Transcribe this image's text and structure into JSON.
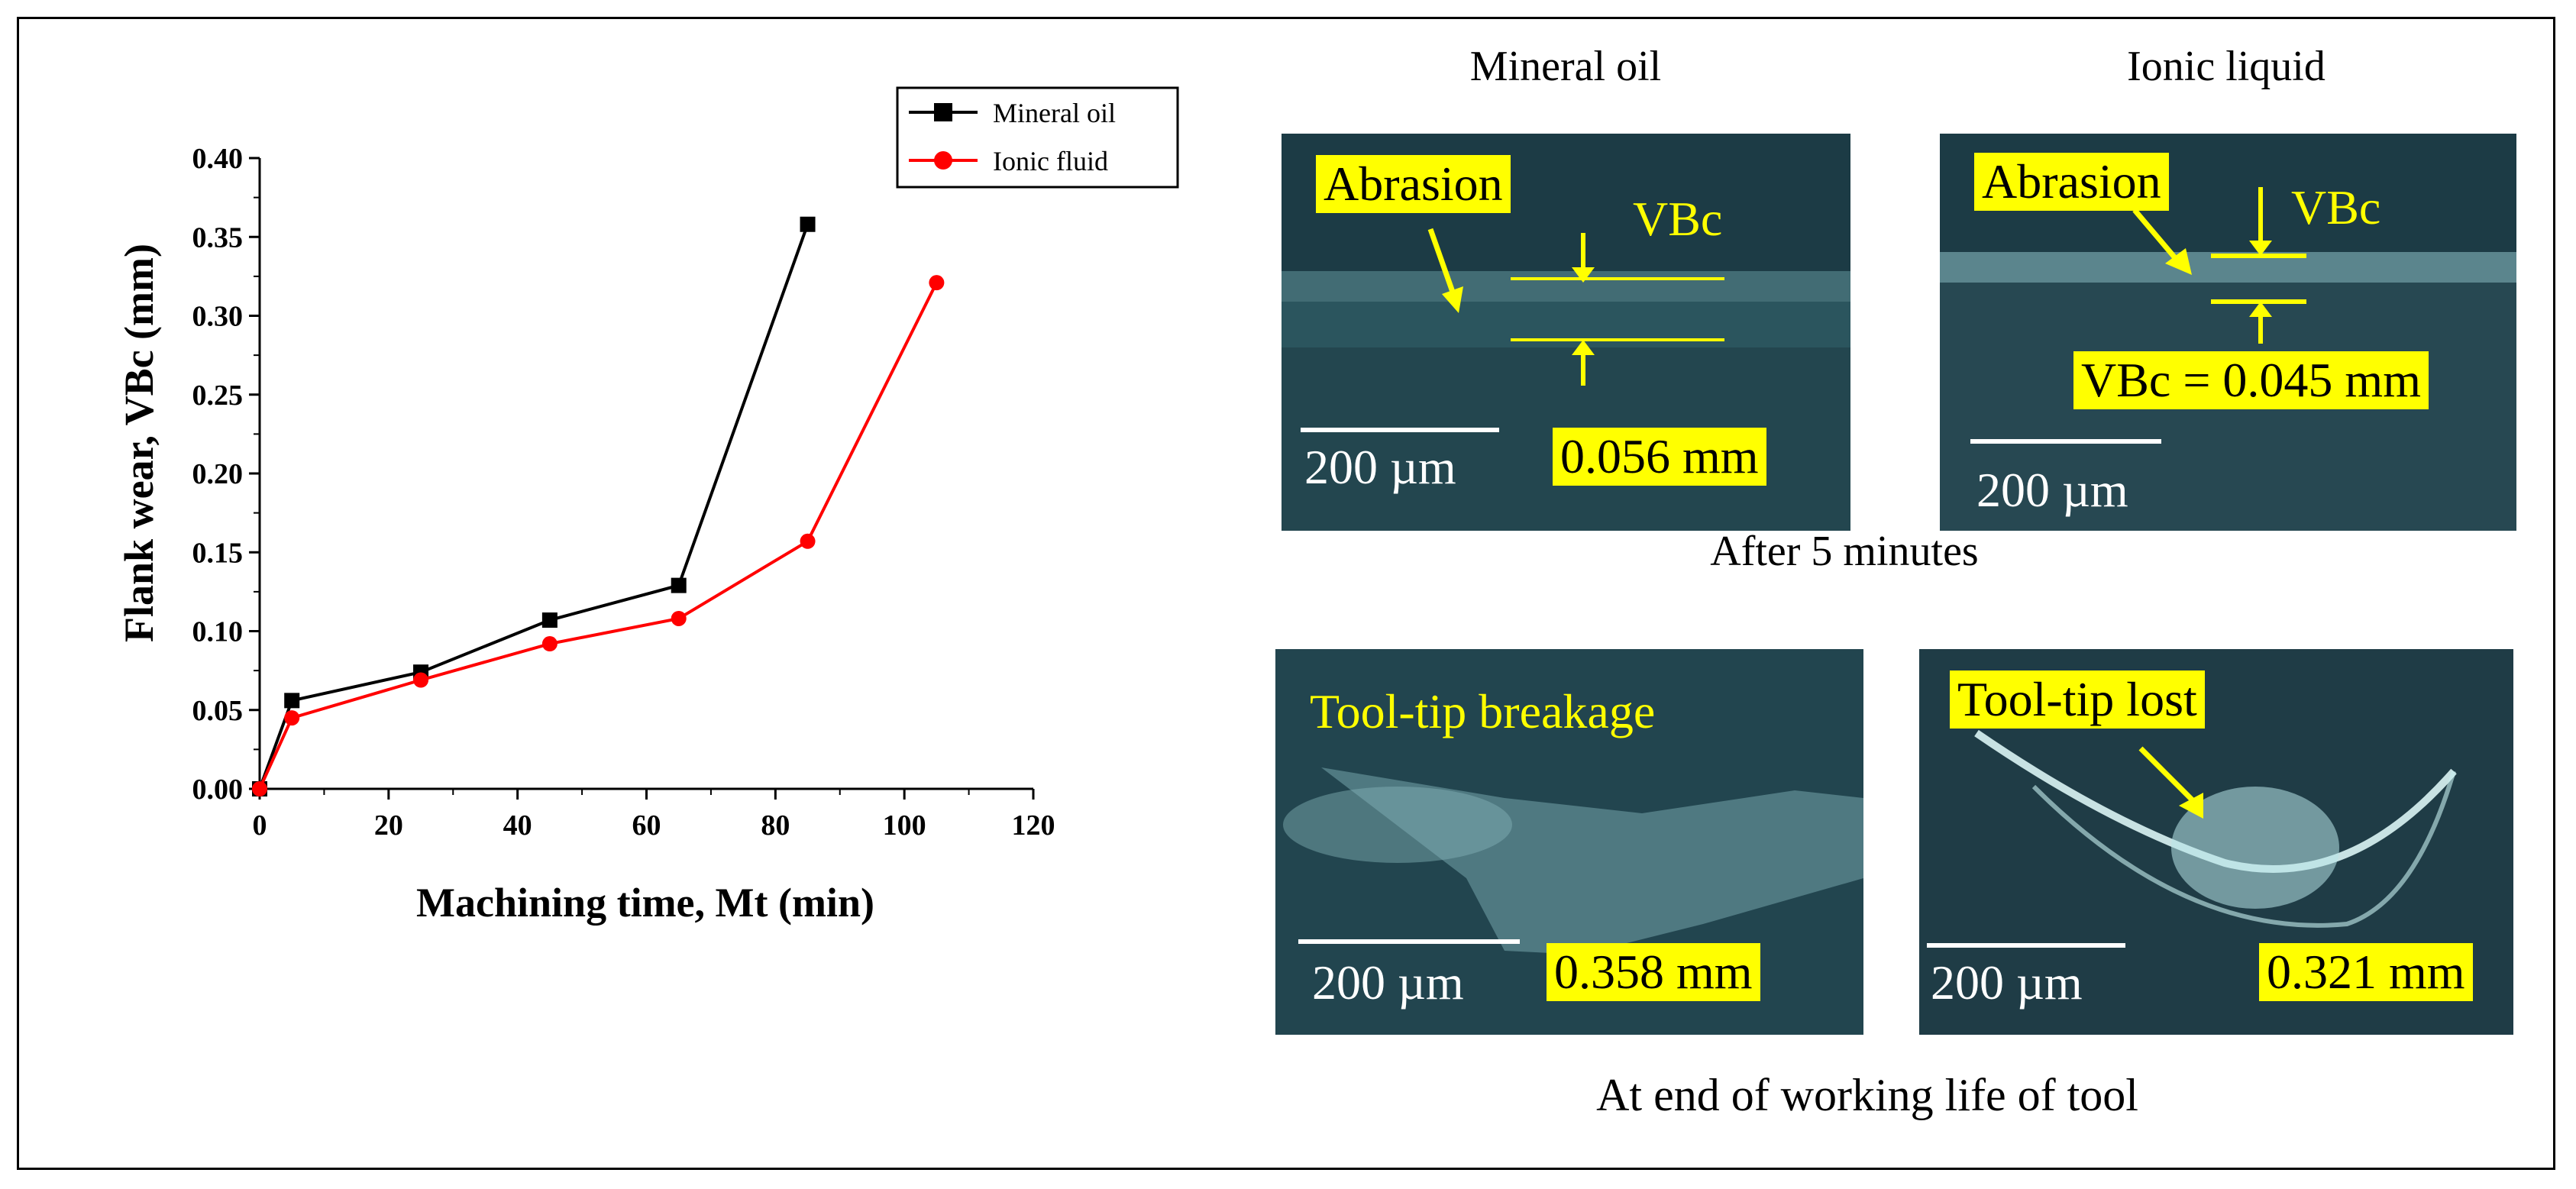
{
  "chart_data": {
    "type": "line",
    "xlabel": "Machining time, Mt (min)",
    "ylabel": "Flank wear, VBc (mm)",
    "xlim": [
      0,
      120
    ],
    "ylim": [
      0,
      0.4
    ],
    "x_ticks": [
      "0",
      "20",
      "40",
      "60",
      "80",
      "100",
      "120"
    ],
    "y_ticks": [
      "0.00",
      "0.05",
      "0.10",
      "0.15",
      "0.20",
      "0.25",
      "0.30",
      "0.35",
      "0.40"
    ],
    "legend_position": "top-right",
    "grid": false,
    "series": [
      {
        "name": "Mineral oil",
        "color": "#000000",
        "marker": "square",
        "x": [
          0,
          5,
          25,
          45,
          65,
          85
        ],
        "values": [
          0.0,
          0.056,
          0.074,
          0.107,
          0.129,
          0.358
        ]
      },
      {
        "name": "Ionic fluid",
        "color": "#ff0000",
        "marker": "circle",
        "x": [
          0,
          5,
          25,
          45,
          65,
          85,
          105
        ],
        "values": [
          0.0,
          0.045,
          0.069,
          0.092,
          0.108,
          0.157,
          0.321
        ]
      }
    ]
  },
  "micrographs": {
    "col_titles": [
      "Mineral oil",
      "Ionic liquid"
    ],
    "caption_top": "After 5 minutes",
    "caption_bottom": "At end of working life of tool",
    "top_left": {
      "label": "Abrasion",
      "vbc": "VBc",
      "scale": "200 µm",
      "measurement": "0.056 mm"
    },
    "top_right": {
      "label": "Abrasion",
      "vbc": "VBc",
      "measurement": "VBc = 0.045 mm",
      "scale": "200 µm"
    },
    "bottom_left": {
      "label": "Tool-tip breakage",
      "scale": "200 µm",
      "measurement": "0.358 mm"
    },
    "bottom_right": {
      "label": "Tool-tip lost",
      "scale": "200 µm",
      "measurement": "0.321 mm"
    },
    "colors": {
      "photo_bg": "#1c3b45",
      "highlight": "#ffff00"
    }
  }
}
